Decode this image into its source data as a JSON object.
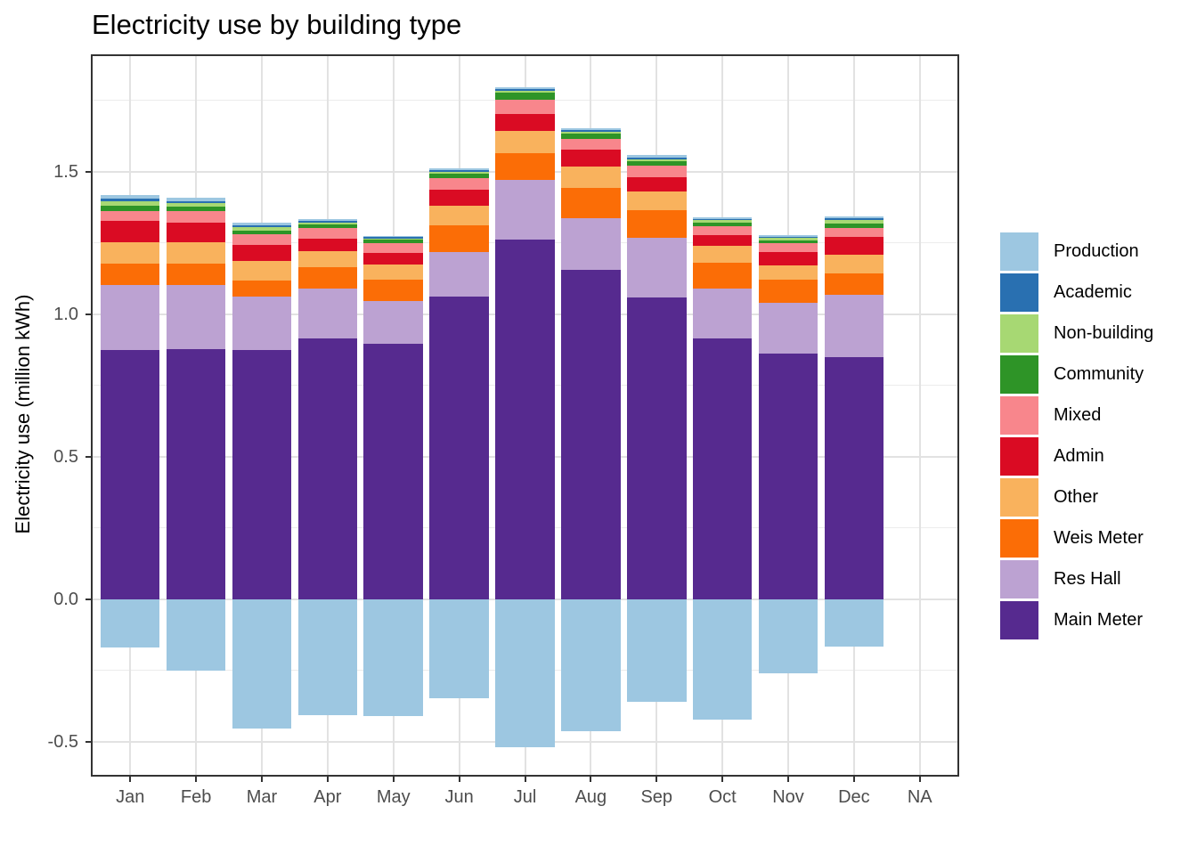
{
  "chart_data": {
    "type": "bar",
    "stacked": true,
    "title": "Electricity use by building type",
    "xlabel": "",
    "ylabel": "Electricity use (million kWh)",
    "categories": [
      "Jan",
      "Feb",
      "Mar",
      "Apr",
      "May",
      "Jun",
      "Jul",
      "Aug",
      "Sep",
      "Oct",
      "Nov",
      "Dec",
      "NA"
    ],
    "ylim": [
      -0.622,
      1.9125
    ],
    "y_ticks": [
      {
        "value": -0.5,
        "label": "-0.5"
      },
      {
        "value": 0.0,
        "label": "0.0"
      },
      {
        "value": 0.5,
        "label": "0.5"
      },
      {
        "value": 1.0,
        "label": "1.0"
      },
      {
        "value": 1.5,
        "label": "1.5"
      }
    ],
    "grid": {
      "h_major": [
        -0.5,
        0.0,
        0.5,
        1.0,
        1.5
      ],
      "h_minor": [
        -0.25,
        0.25,
        0.75,
        1.25,
        1.75
      ]
    },
    "legend_position": "right",
    "legend": [
      {
        "label": "Production",
        "color": "#9DC7E1"
      },
      {
        "label": "Academic",
        "color": "#2970B1"
      },
      {
        "label": "Non-building",
        "color": "#A7D873"
      },
      {
        "label": "Community",
        "color": "#2E9427"
      },
      {
        "label": "Mixed",
        "color": "#F8868C"
      },
      {
        "label": "Admin",
        "color": "#DA0B23"
      },
      {
        "label": "Other",
        "color": "#F9B25D"
      },
      {
        "label": "Weis Meter",
        "color": "#FB6D06"
      },
      {
        "label": "Res Hall",
        "color": "#BCA2D2"
      },
      {
        "label": "Main Meter",
        "color": "#562A8F"
      }
    ],
    "series": [
      {
        "name": "Main Meter",
        "color": "#562A8F",
        "values": [
          0.874,
          0.877,
          0.874,
          0.916,
          0.897,
          1.061,
          1.261,
          1.155,
          1.058,
          0.916,
          0.861,
          0.851,
          0
        ]
      },
      {
        "name": "Res Hall",
        "color": "#BCA2D2",
        "values": [
          0.229,
          0.226,
          0.187,
          0.174,
          0.149,
          0.159,
          0.21,
          0.183,
          0.212,
          0.174,
          0.18,
          0.219,
          0
        ]
      },
      {
        "name": "Weis Meter",
        "color": "#FB6D06",
        "values": [
          0.075,
          0.075,
          0.058,
          0.076,
          0.075,
          0.091,
          0.094,
          0.106,
          0.096,
          0.091,
          0.081,
          0.075,
          0
        ]
      },
      {
        "name": "Other",
        "color": "#F9B25D",
        "values": [
          0.076,
          0.076,
          0.069,
          0.057,
          0.055,
          0.07,
          0.08,
          0.076,
          0.065,
          0.06,
          0.049,
          0.064,
          0
        ]
      },
      {
        "name": "Admin",
        "color": "#DA0B23",
        "values": [
          0.075,
          0.068,
          0.056,
          0.044,
          0.039,
          0.055,
          0.059,
          0.057,
          0.049,
          0.036,
          0.047,
          0.063,
          0
        ]
      },
      {
        "name": "Mixed",
        "color": "#F8868C",
        "values": [
          0.034,
          0.04,
          0.036,
          0.036,
          0.036,
          0.042,
          0.05,
          0.04,
          0.042,
          0.032,
          0.031,
          0.031,
          0
        ]
      },
      {
        "name": "Community",
        "color": "#2E9427",
        "values": [
          0.018,
          0.016,
          0.013,
          0.013,
          0.011,
          0.016,
          0.023,
          0.016,
          0.015,
          0.013,
          0.01,
          0.017,
          0
        ]
      },
      {
        "name": "Non-building",
        "color": "#A7D873",
        "values": [
          0.016,
          0.012,
          0.012,
          0.006,
          0.005,
          0.005,
          0.006,
          0.007,
          0.006,
          0.008,
          0.009,
          0.012,
          0
        ]
      },
      {
        "name": "Academic",
        "color": "#2970B1",
        "values": [
          0.009,
          0.008,
          0.007,
          0.006,
          0.004,
          0.006,
          0.007,
          0.006,
          0.006,
          0.005,
          0.004,
          0.005,
          0
        ]
      },
      {
        "name": "Production",
        "color": "#9DC7E1",
        "values": [
          0.012,
          0.01,
          0.01,
          0.006,
          0.004,
          0.006,
          0.008,
          0.006,
          0.01,
          0.005,
          0.005,
          0.006,
          0
        ]
      }
    ],
    "negative_series": {
      "name": "Production",
      "color": "#9DC7E1",
      "values": [
        -0.17,
        -0.251,
        -0.454,
        -0.405,
        -0.41,
        -0.347,
        -0.52,
        -0.462,
        -0.36,
        -0.423,
        -0.259,
        -0.166,
        0
      ]
    },
    "theme": {
      "background": "#FFFFFF",
      "panel_border": "#333333",
      "grid_major": "#E2E2E2",
      "grid_minor": "#ECECEC",
      "tick_color": "#333333",
      "axis_text_color": "#4D4D4D",
      "title_color": "#000000",
      "legend_text_color": "#000000"
    }
  }
}
